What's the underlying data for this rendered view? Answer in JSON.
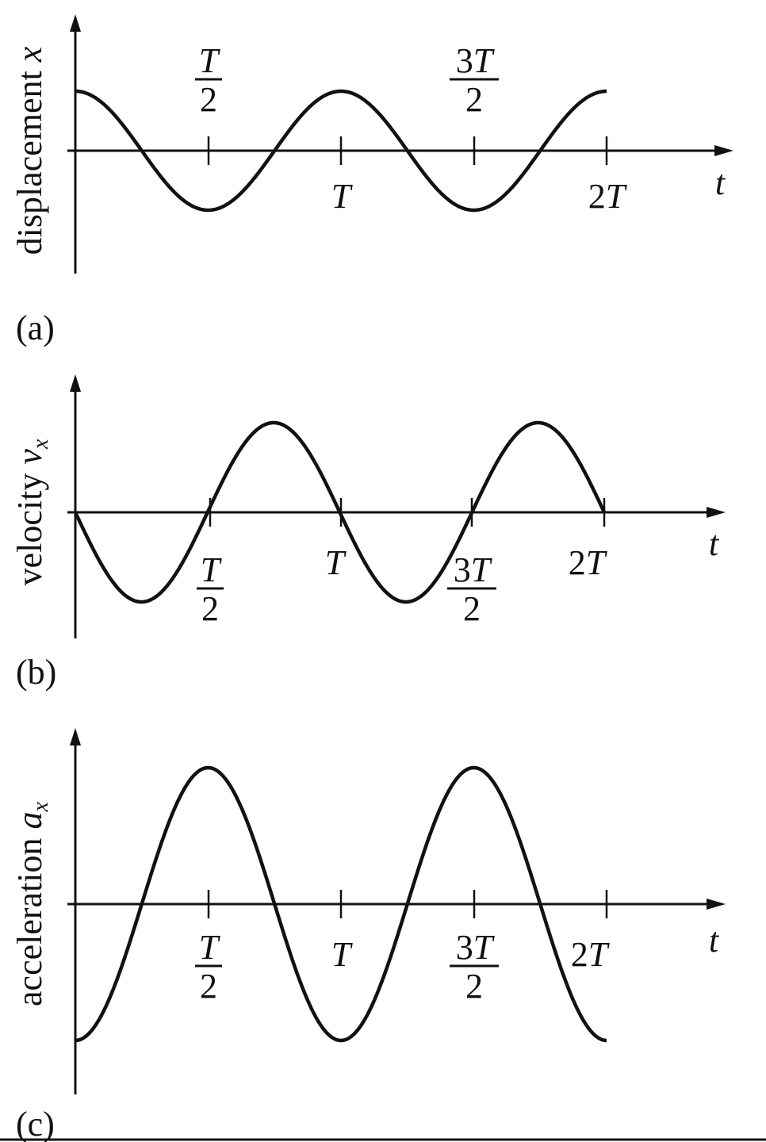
{
  "chart_data": [
    {
      "type": "line",
      "panel": "(a)",
      "ylabel": "displacement",
      "ylabel_symbol": "x",
      "xlabel": "t",
      "x": [
        0,
        0.25,
        0.5,
        0.75,
        1,
        1.25,
        1.5,
        1.75,
        2
      ],
      "x_unit": "T",
      "values": [
        1,
        0,
        -1,
        0,
        1,
        0,
        -1,
        0,
        1
      ],
      "function": "cos",
      "tick_labels": [
        {
          "num": "T",
          "den": "2",
          "frac": true,
          "pos": "above"
        },
        {
          "text": "T",
          "frac": false,
          "pos": "below"
        },
        {
          "num": "3T",
          "den": "2",
          "frac": true,
          "pos": "above"
        },
        {
          "text": "2T",
          "frac": false,
          "pos": "below"
        }
      ],
      "grid": false
    },
    {
      "type": "line",
      "panel": "(b)",
      "ylabel": "velocity",
      "ylabel_symbol": "v",
      "ylabel_sub": "x",
      "xlabel": "t",
      "x": [
        0,
        0.25,
        0.5,
        0.75,
        1,
        1.25,
        1.5,
        1.75,
        2
      ],
      "x_unit": "T",
      "values": [
        0,
        -1,
        0,
        1,
        0,
        -1,
        0,
        1,
        0
      ],
      "function": "-sin",
      "tick_labels": [
        {
          "num": "T",
          "den": "2",
          "frac": true,
          "pos": "below"
        },
        {
          "text": "T",
          "frac": false,
          "pos": "below"
        },
        {
          "num": "3T",
          "den": "2",
          "frac": true,
          "pos": "below"
        },
        {
          "text": "2T",
          "frac": false,
          "pos": "below"
        }
      ],
      "grid": false
    },
    {
      "type": "line",
      "panel": "(c)",
      "ylabel": "acceleration",
      "ylabel_symbol": "a",
      "ylabel_sub": "x",
      "xlabel": "t",
      "x": [
        0,
        0.25,
        0.5,
        0.75,
        1,
        1.25,
        1.5,
        1.75,
        2
      ],
      "x_unit": "T",
      "values": [
        -1,
        0,
        1,
        0,
        -1,
        0,
        1,
        0,
        -1
      ],
      "function": "-cos",
      "tick_labels": [
        {
          "num": "T",
          "den": "2",
          "frac": true,
          "pos": "below"
        },
        {
          "text": "T",
          "frac": false,
          "pos": "below"
        },
        {
          "num": "3T",
          "den": "2",
          "frac": true,
          "pos": "below"
        },
        {
          "text": "2T",
          "frac": false,
          "pos": "below"
        }
      ],
      "grid": false
    }
  ]
}
